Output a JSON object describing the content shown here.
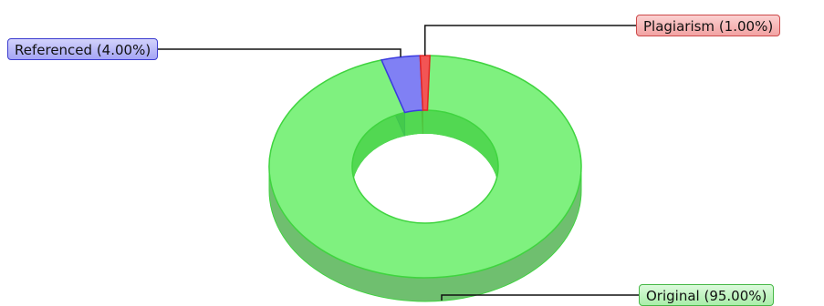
{
  "chart_data": {
    "type": "pie",
    "variant": "donut-3d",
    "title": "",
    "slices": [
      {
        "label": "Original",
        "value": 95.0,
        "display": "Original (95.00%)",
        "color": "#7ff17f",
        "edge": "#3fd43f",
        "shade": "#6fbf6f"
      },
      {
        "label": "Referenced",
        "value": 4.0,
        "display": "Referenced (4.00%)",
        "color": "#8080f4",
        "edge": "#3a3ae0",
        "shade": "#6f6fc0"
      },
      {
        "label": "Plagiarism",
        "value": 1.0,
        "display": "Plagiarism (1.00%)",
        "color": "#f25555",
        "edge": "#e32626",
        "shade": "#b84444"
      }
    ],
    "legend": "callouts"
  }
}
